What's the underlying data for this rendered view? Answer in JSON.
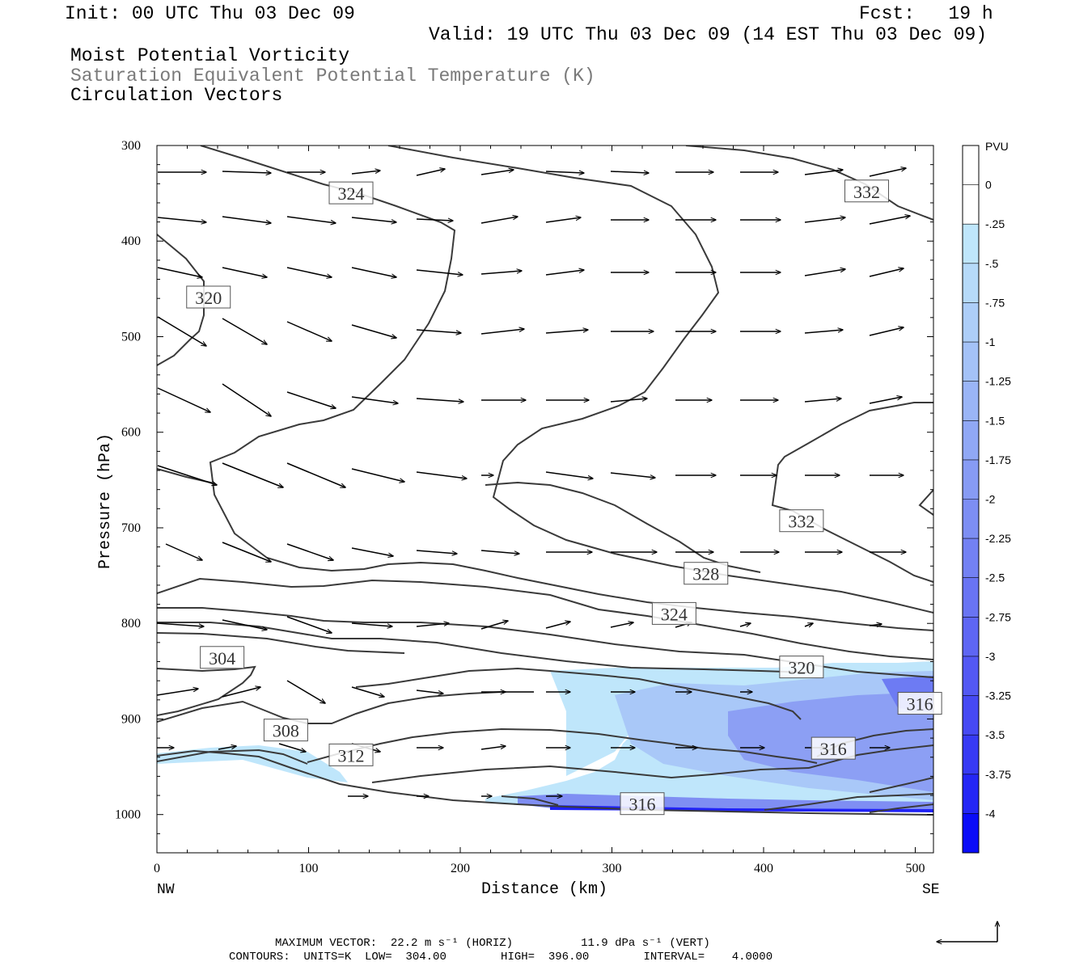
{
  "header": {
    "init": "Init: 00 UTC Thu 03 Dec 09",
    "fcst": "Fcst:   19 h",
    "valid": "Valid: 19 UTC Thu 03 Dec 09 (14 EST Thu 03 Dec 09)",
    "line1": "Moist Potential Vorticity",
    "line2": "Saturation Equivalent Potential Temperature (K)",
    "line3": "Circulation Vectors"
  },
  "footer": {
    "line1": "MAXIMUM VECTOR:  22.2 m s⁻¹ (HORIZ)          11.9 dPa s⁻¹ (VERT)",
    "line2": "CONTOURS:  UNITS=K  LOW=  304.00        HIGH=  396.00        INTERVAL=    4.0000"
  },
  "chart_data": {
    "type": "contour-cross-section",
    "xlabel": "Distance (km)",
    "ylabel": "Pressure (hPa)",
    "x_ticks": [
      0,
      100,
      200,
      300,
      400,
      500
    ],
    "y_ticks": [
      300,
      400,
      500,
      600,
      700,
      800,
      900,
      1000
    ],
    "xlim": [
      0,
      512
    ],
    "ylim": [
      300,
      1040
    ],
    "x_end_labels": {
      "left": "NW",
      "right": "SE"
    },
    "colorbar": {
      "unit": "PVU",
      "levels": [
        "0",
        "-.25",
        "-.5",
        "-.75",
        "-1",
        "-1.25",
        "-1.5",
        "-1.75",
        "-2",
        "-2.25",
        "-2.5",
        "-2.75",
        "-3",
        "-3.25",
        "-3.5",
        "-3.75",
        "-4"
      ],
      "colors": [
        "#ffffff",
        "#ffffff",
        "#bfe6fb",
        "#b6daf9",
        "#adcef8",
        "#a4c2f7",
        "#9ab5f6",
        "#90a8f5",
        "#879bf4",
        "#7d8ef3",
        "#7381f3",
        "#6974f3",
        "#5e66f3",
        "#5358f3",
        "#4649f3",
        "#373af4",
        "#2426f5",
        "#0a0cf8"
      ]
    },
    "contour_labels": [
      {
        "text": "324",
        "x": 128,
        "p": 350
      },
      {
        "text": "332",
        "x": 468,
        "p": 348
      },
      {
        "text": "320",
        "x": 34,
        "p": 459
      },
      {
        "text": "332",
        "x": 425,
        "p": 693
      },
      {
        "text": "328",
        "x": 362,
        "p": 748
      },
      {
        "text": "324",
        "x": 341,
        "p": 790
      },
      {
        "text": "304",
        "x": 43,
        "p": 836
      },
      {
        "text": "320",
        "x": 425,
        "p": 846
      },
      {
        "text": "316",
        "x": 503,
        "p": 884
      },
      {
        "text": "308",
        "x": 85,
        "p": 912
      },
      {
        "text": "316",
        "x": 446,
        "p": 931
      },
      {
        "text": "312",
        "x": 128,
        "p": 938
      },
      {
        "text": "316",
        "x": 320,
        "p": 989
      }
    ],
    "max_vector_horiz": "22.2 m s-1",
    "max_vector_vert": "11.9 dPa s-1",
    "contour_low": 304,
    "contour_high": 396,
    "contour_interval": 4
  }
}
